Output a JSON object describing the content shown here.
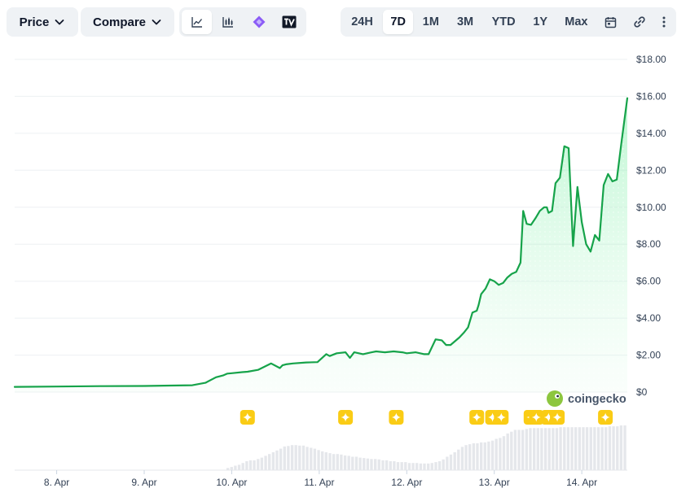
{
  "toolbar": {
    "price_label": "Price",
    "compare_label": "Compare",
    "view_icons": [
      "line-chart-icon",
      "candlestick-icon",
      "diamond-logo-icon",
      "tradingview-icon"
    ],
    "ranges": [
      "24H",
      "7D",
      "1M",
      "3M",
      "YTD",
      "1Y",
      "Max"
    ],
    "active_range": "7D",
    "extra_icons": [
      "calendar-icon",
      "link-icon",
      "more-icon"
    ]
  },
  "watermark": "coingecko",
  "colors": {
    "line": "#16a34a",
    "fill": "#dcfce7",
    "marker": "#facc15",
    "volume": "#e5e7eb"
  },
  "chart_data": {
    "type": "area",
    "title": "",
    "xlabel": "",
    "ylabel": "",
    "ylim": [
      0,
      18
    ],
    "x_domain": [
      7.52,
      14.52
    ],
    "grid": true,
    "y_ticks": [
      0,
      2,
      4,
      6,
      8,
      10,
      12,
      14,
      16,
      18
    ],
    "y_tick_labels": [
      "$0",
      "$2.00",
      "$4.00",
      "$6.00",
      "$8.00",
      "$10.00",
      "$12.00",
      "$14.00",
      "$16.00",
      "$18.00"
    ],
    "x_ticks": [
      8,
      9,
      10,
      11,
      12,
      13,
      14
    ],
    "x_tick_labels": [
      "8. Apr",
      "9. Apr",
      "10. Apr",
      "11. Apr",
      "12. Apr",
      "13. Apr",
      "14. Apr"
    ],
    "series": [
      {
        "x": [
          7.52,
          8.0,
          8.5,
          9.0,
          9.3,
          9.55,
          9.7,
          9.82,
          9.9,
          9.95,
          10.0,
          10.12,
          10.18,
          10.3,
          10.45,
          10.55,
          10.58,
          10.62,
          10.7,
          10.85,
          10.98,
          11.08,
          11.12,
          11.2,
          11.3,
          11.35,
          11.4,
          11.5,
          11.6,
          11.65,
          11.75,
          11.85,
          11.95,
          12.0,
          12.1,
          12.2,
          12.25,
          12.33,
          12.4,
          12.45,
          12.5,
          12.6,
          12.65,
          12.7,
          12.75,
          12.8,
          12.82,
          12.85,
          12.9,
          12.95,
          13.0,
          13.05,
          13.1,
          13.15,
          13.2,
          13.25,
          13.3,
          13.33,
          13.37,
          13.42,
          13.47,
          13.52,
          13.57,
          13.6,
          13.62,
          13.66,
          13.7,
          13.75,
          13.8,
          13.85,
          13.9,
          13.95,
          14.0,
          14.05,
          14.1,
          14.15,
          14.2,
          14.25,
          14.3,
          14.35,
          14.4,
          14.45,
          14.52
        ],
        "values": [
          0.28,
          0.3,
          0.32,
          0.33,
          0.35,
          0.37,
          0.5,
          0.8,
          0.9,
          1.0,
          1.02,
          1.08,
          1.1,
          1.2,
          1.55,
          1.3,
          1.45,
          1.5,
          1.55,
          1.6,
          1.62,
          2.05,
          1.95,
          2.1,
          2.15,
          1.85,
          2.15,
          2.05,
          2.15,
          2.2,
          2.15,
          2.2,
          2.15,
          2.1,
          2.15,
          2.05,
          2.05,
          2.85,
          2.8,
          2.55,
          2.55,
          2.95,
          3.2,
          3.5,
          4.3,
          4.4,
          4.7,
          5.3,
          5.6,
          6.1,
          6.0,
          5.8,
          5.9,
          6.2,
          6.4,
          6.5,
          7.0,
          9.8,
          9.1,
          9.05,
          9.4,
          9.8,
          10.0,
          10.0,
          9.7,
          9.8,
          11.3,
          11.6,
          13.3,
          13.2,
          7.9,
          11.1,
          9.2,
          8.0,
          7.6,
          8.5,
          8.2,
          11.2,
          11.8,
          11.4,
          11.5,
          13.4,
          15.9
        ]
      }
    ],
    "event_markers": [
      10.18,
      11.3,
      11.88,
      12.8,
      12.98,
      13.08,
      13.42,
      13.48,
      13.62,
      13.72,
      14.27
    ],
    "volume": [
      0,
      0,
      0,
      0,
      0,
      0,
      0,
      0,
      0,
      0,
      0,
      0,
      0,
      0,
      0,
      0,
      0,
      0,
      0,
      0,
      0,
      0,
      0,
      0,
      0,
      0,
      0,
      0,
      0,
      0,
      0,
      0,
      0,
      0,
      0,
      0,
      0,
      0,
      0,
      0,
      0,
      0,
      0,
      0,
      0,
      0,
      0,
      0,
      0,
      0,
      0,
      0,
      0,
      0,
      0,
      0,
      0.05,
      0.07,
      0.1,
      0.12,
      0.16,
      0.2,
      0.22,
      0.22,
      0.25,
      0.28,
      0.32,
      0.36,
      0.4,
      0.44,
      0.48,
      0.53,
      0.54,
      0.56,
      0.56,
      0.55,
      0.55,
      0.52,
      0.5,
      0.48,
      0.45,
      0.42,
      0.4,
      0.38,
      0.36,
      0.36,
      0.35,
      0.33,
      0.32,
      0.3,
      0.3,
      0.28,
      0.27,
      0.26,
      0.25,
      0.25,
      0.24,
      0.22,
      0.22,
      0.2,
      0.2,
      0.18,
      0.18,
      0.18,
      0.16,
      0.16,
      0.16,
      0.15,
      0.15,
      0.15,
      0.16,
      0.18,
      0.2,
      0.24,
      0.3,
      0.35,
      0.4,
      0.46,
      0.52,
      0.56,
      0.58,
      0.6,
      0.6,
      0.62,
      0.62,
      0.64,
      0.66,
      0.7,
      0.72,
      0.76,
      0.82,
      0.86,
      0.9,
      0.9,
      0.9,
      0.92,
      0.94,
      0.94,
      0.94,
      0.94,
      0.94,
      0.94,
      0.94,
      0.94,
      0.96,
      0.96,
      0.96,
      0.96,
      0.96,
      0.96,
      0.96,
      0.96,
      0.96,
      0.96,
      0.96,
      0.96,
      0.96,
      0.98,
      0.98,
      0.98,
      1.0,
      1.0
    ]
  }
}
